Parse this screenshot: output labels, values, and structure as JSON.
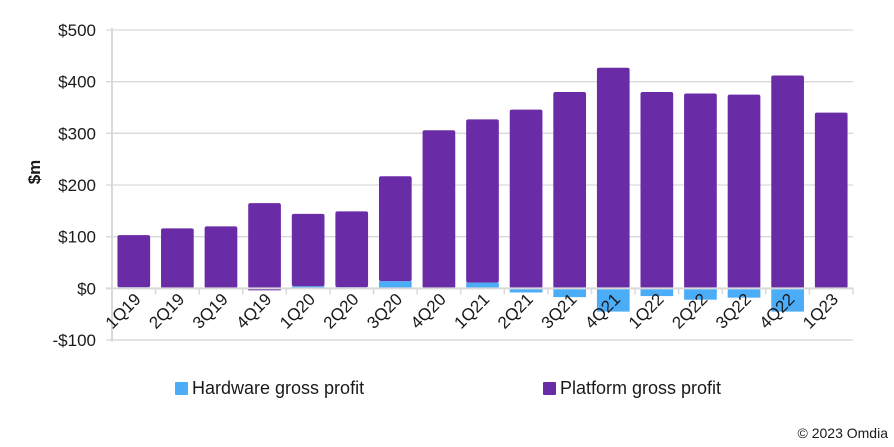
{
  "chart_data": {
    "type": "bar",
    "stacked": true,
    "title": "",
    "xlabel": "",
    "ylabel": "$m",
    "ylim": [
      -100,
      500
    ],
    "yticks": [
      -100,
      0,
      100,
      200,
      300,
      400,
      500
    ],
    "ytick_labels": [
      "-$100",
      "$0",
      "$100",
      "$200",
      "$300",
      "$400",
      "$500"
    ],
    "grid": true,
    "legend_position": "bottom",
    "categories": [
      "1Q19",
      "2Q19",
      "3Q19",
      "4Q19",
      "1Q20",
      "2Q20",
      "3Q20",
      "4Q20",
      "1Q21",
      "2Q21",
      "3Q21",
      "4Q21",
      "1Q22",
      "2Q22",
      "3Q22",
      "4Q22",
      "1Q23"
    ],
    "series": [
      {
        "name": "Hardware gross profit",
        "color": "#4BACF7",
        "values": [
          2,
          0,
          0,
          0,
          4,
          2,
          14,
          0,
          11,
          -8,
          -17,
          -45,
          -15,
          -22,
          -18,
          -45,
          0
        ]
      },
      {
        "name": "Platform gross profit",
        "color": "#6A2BA6",
        "values": [
          101,
          116,
          120,
          165,
          140,
          147,
          203,
          306,
          316,
          346,
          380,
          427,
          380,
          377,
          375,
          412,
          340
        ],
        "notes": "4Q19 shows a slight dip below zero baseline"
      }
    ],
    "credit": "© 2023 Omdia"
  },
  "legend": {
    "hardware_label": "Hardware gross profit",
    "platform_label": "Platform gross profit"
  },
  "credit": "© 2023 Omdia"
}
